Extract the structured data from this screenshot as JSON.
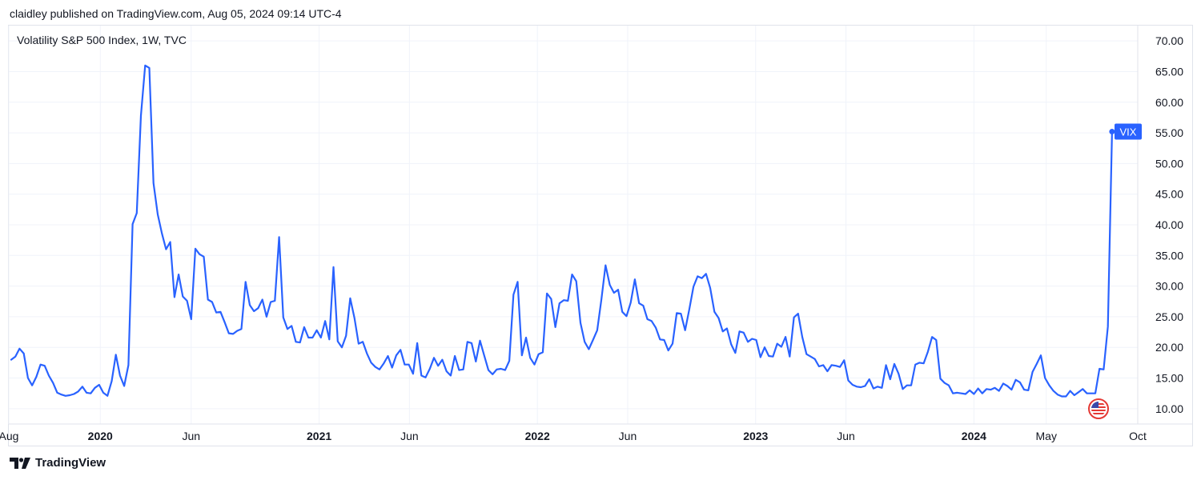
{
  "header": {
    "publisher_line": "claidley published on TradingView.com, Aug 05, 2024 09:14 UTC-4"
  },
  "footer": {
    "brand": "TradingView"
  },
  "colors": {
    "line": "#2962ff",
    "grid": "#f0f3fa",
    "border": "#e0e3eb",
    "text": "#131722",
    "flag_red": "#e53935"
  },
  "icons": {
    "brand_logo": "tradingview-logo-icon",
    "flag": "us-flag-icon"
  },
  "chart_data": {
    "type": "line",
    "title": "Volatility S&P 500 Index, 1W, TVC",
    "series": [
      {
        "name": "VIX",
        "label": "VIX",
        "last_value": 55.2,
        "start_date": "2019-08-05",
        "interval_days": 7,
        "values": [
          18.0,
          18.5,
          19.8,
          19.0,
          15.0,
          13.8,
          15.2,
          17.2,
          17.0,
          15.4,
          14.2,
          12.6,
          12.3,
          12.1,
          12.2,
          12.4,
          12.8,
          13.6,
          12.6,
          12.5,
          13.4,
          13.9,
          12.6,
          12.1,
          14.5,
          18.8,
          15.4,
          13.7,
          17.1,
          40.1,
          41.9,
          57.8,
          66.0,
          65.6,
          46.8,
          41.7,
          38.6,
          36.0,
          37.2,
          28.2,
          31.9,
          28.3,
          27.6,
          24.6,
          36.1,
          35.2,
          34.8,
          27.8,
          27.4,
          25.7,
          25.8,
          24.1,
          22.3,
          22.2,
          22.7,
          23.0,
          30.7,
          26.9,
          25.9,
          26.4,
          27.8,
          25.0,
          27.4,
          27.6,
          38.0,
          24.9,
          23.0,
          23.5,
          20.9,
          20.8,
          23.3,
          21.6,
          21.6,
          22.8,
          21.6,
          24.3,
          21.3,
          33.1,
          21.0,
          20.0,
          21.9,
          28.0,
          24.8,
          20.6,
          20.9,
          19.0,
          17.5,
          16.8,
          16.4,
          17.4,
          18.6,
          16.7,
          18.7,
          19.6,
          17.2,
          17.2,
          15.7,
          20.7,
          15.4,
          15.1,
          16.5,
          18.3,
          17.0,
          18.0,
          16.1,
          15.4,
          18.6,
          16.3,
          16.4,
          20.9,
          20.7,
          17.7,
          21.1,
          18.7,
          16.3,
          15.6,
          16.4,
          16.5,
          16.3,
          17.8,
          28.6,
          30.7,
          18.7,
          21.6,
          18.3,
          17.2,
          18.9,
          19.2,
          28.8,
          27.9,
          23.3,
          27.2,
          27.7,
          27.6,
          31.9,
          30.8,
          24.0,
          20.9,
          19.7,
          21.2,
          22.8,
          27.8,
          33.4,
          30.2,
          28.9,
          29.4,
          25.8,
          25.1,
          27.3,
          31.1,
          27.2,
          26.8,
          24.6,
          24.3,
          23.2,
          21.3,
          21.2,
          19.5,
          20.6,
          25.6,
          25.5,
          22.8,
          26.2,
          29.9,
          31.6,
          31.3,
          32.0,
          29.7,
          25.8,
          24.8,
          22.6,
          23.1,
          20.5,
          19.1,
          22.6,
          22.4,
          20.9,
          21.4,
          21.2,
          18.4,
          20.0,
          18.6,
          18.5,
          20.6,
          20.1,
          21.7,
          18.5,
          24.9,
          25.5,
          21.7,
          18.9,
          18.5,
          18.1,
          16.9,
          17.1,
          16.1,
          17.1,
          17.0,
          16.8,
          17.9,
          14.6,
          13.9,
          13.6,
          13.5,
          13.7,
          14.8,
          13.3,
          13.6,
          13.4,
          17.1,
          14.8,
          17.3,
          15.7,
          13.2,
          13.8,
          13.8,
          17.2,
          17.5,
          17.4,
          19.3,
          21.7,
          21.2,
          14.9,
          14.2,
          13.8,
          12.5,
          12.6,
          12.5,
          12.4,
          13.0,
          12.4,
          13.3,
          12.5,
          13.2,
          13.1,
          13.4,
          12.9,
          14.1,
          13.7,
          13.1,
          14.7,
          14.3,
          13.1,
          13.0,
          16.0,
          17.3,
          18.7,
          15.0,
          13.8,
          12.9,
          12.3,
          12.0,
          12.0,
          12.9,
          12.2,
          12.7,
          13.2,
          12.5,
          12.5,
          12.5,
          16.5,
          16.4,
          23.4,
          55.2
        ]
      }
    ],
    "x_tick_labels": [
      {
        "label": "Aug",
        "date": "2019-08-01",
        "bold": false
      },
      {
        "label": "2020",
        "date": "2020-01-01",
        "bold": true
      },
      {
        "label": "Jun",
        "date": "2020-06-01",
        "bold": false
      },
      {
        "label": "2021",
        "date": "2021-01-01",
        "bold": true
      },
      {
        "label": "Jun",
        "date": "2021-06-01",
        "bold": false
      },
      {
        "label": "2022",
        "date": "2022-01-01",
        "bold": true
      },
      {
        "label": "Jun",
        "date": "2022-06-01",
        "bold": false
      },
      {
        "label": "2023",
        "date": "2023-01-01",
        "bold": true
      },
      {
        "label": "Jun",
        "date": "2023-06-01",
        "bold": false
      },
      {
        "label": "2024",
        "date": "2024-01-01",
        "bold": true
      },
      {
        "label": "May",
        "date": "2024-05-01",
        "bold": false
      },
      {
        "label": "Oct",
        "date": "2024-10-01",
        "bold": false
      }
    ],
    "y_tick_labels": [
      "10.00",
      "15.00",
      "20.00",
      "25.00",
      "30.00",
      "35.00",
      "40.00",
      "45.00",
      "50.00",
      "55.00",
      "60.00",
      "65.00",
      "70.00"
    ],
    "y_ticks": [
      10,
      15,
      20,
      25,
      30,
      35,
      40,
      45,
      50,
      55,
      60,
      65,
      70
    ],
    "xlim": [
      "2019-08-01",
      "2024-10-01"
    ],
    "ylim": [
      7.5,
      72.5
    ],
    "grid": true,
    "y_axis_position": "right",
    "legend_position": "top-left"
  }
}
